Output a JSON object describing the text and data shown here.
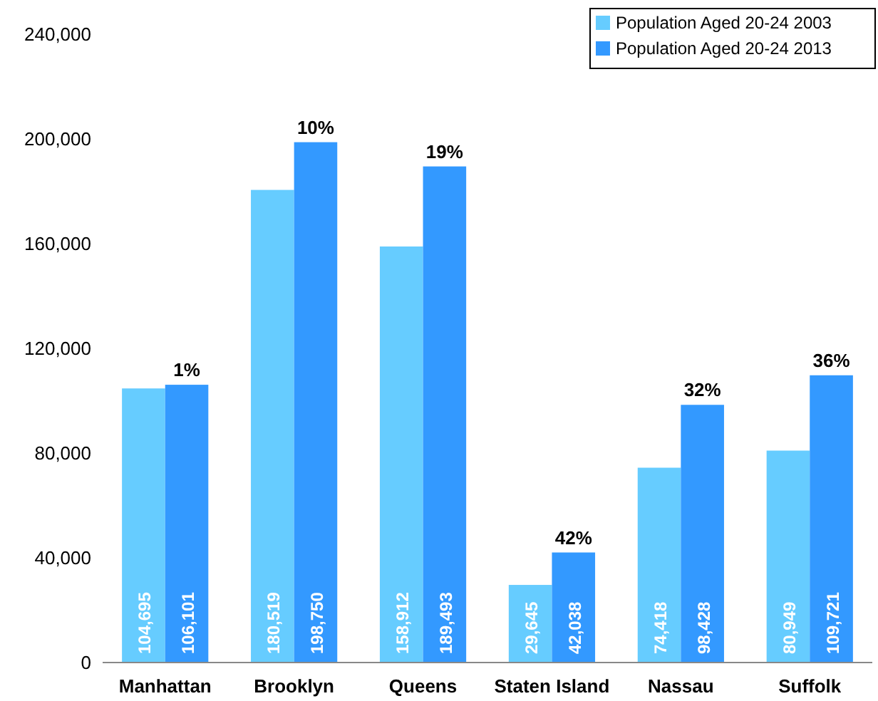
{
  "chart_data": {
    "type": "bar",
    "categories": [
      "Manhattan",
      "Brooklyn",
      "Queens",
      "Staten Island",
      "Nassau",
      "Suffolk"
    ],
    "series": [
      {
        "name": "Population Aged 20-24 2003",
        "color": "#66ccff",
        "values": [
          104695,
          180519,
          158912,
          29645,
          74418,
          80949
        ],
        "value_labels": [
          "104,695",
          "180,519",
          "158,912",
          "29,645",
          "74,418",
          "80,949"
        ]
      },
      {
        "name": "Population Aged 20-24 2013",
        "color": "#3399ff",
        "values": [
          106101,
          198750,
          189493,
          42038,
          98428,
          109721
        ],
        "value_labels": [
          "106,101",
          "198,750",
          "189,493",
          "42,038",
          "98,428",
          "109,721"
        ]
      }
    ],
    "ylim": [
      0,
      240000
    ],
    "yticks": [
      0,
      {
        "value": 40000,
        "label": "40,000"
      },
      {
        "value": 80000,
        "label": "80,000"
      },
      {
        "value": 120000,
        "label": "120,000"
      },
      {
        "value": 160000,
        "label": "160,000"
      },
      {
        "value": 200000,
        "label": "200,000"
      },
      {
        "value": 240000,
        "label": "240,000"
      }
    ],
    "annotations": [
      {
        "text": "1%",
        "x": "Manhattan",
        "y": 106101
      },
      {
        "text": "10%",
        "x": "Brooklyn",
        "y": 198750
      },
      {
        "text": "19%",
        "x": "Queens",
        "y": 189493
      },
      {
        "text": "42%",
        "x": "Staten Island",
        "y": 42038
      },
      {
        "text": "32%",
        "x": "Nassau",
        "y": 98428
      },
      {
        "text": "36%",
        "x": "Suffolk",
        "y": 109721
      }
    ],
    "grid": false,
    "legend": "top right"
  }
}
